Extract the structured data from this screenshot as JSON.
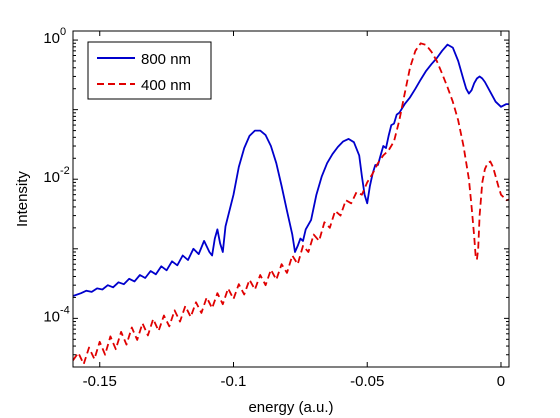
{
  "chart_data": {
    "type": "line",
    "xlabel": "energy (a.u.)",
    "ylabel": "Intensity",
    "xlim": [
      -0.16,
      0.003
    ],
    "ylim": [
      2e-05,
      1.35
    ],
    "yscale": "log",
    "grid": false,
    "legend": "top-left",
    "x_ticks": [
      {
        "value": -0.15,
        "label": "-0.15"
      },
      {
        "value": -0.1,
        "label": "-0.1"
      },
      {
        "value": -0.05,
        "label": "-0.05"
      },
      {
        "value": 0,
        "label": "0"
      }
    ],
    "y_ticks": [
      {
        "value": 0.0001,
        "base": "10",
        "exp": "-4"
      },
      {
        "value": 0.01,
        "base": "10",
        "exp": "-2"
      },
      {
        "value": 1,
        "base": "10",
        "exp": "0"
      }
    ],
    "series": [
      {
        "name": "800 nm",
        "color": "#0000cc",
        "dash": "solid",
        "x": [
          -0.16,
          -0.157,
          -0.155,
          -0.153,
          -0.151,
          -0.149,
          -0.147,
          -0.145,
          -0.143,
          -0.141,
          -0.139,
          -0.137,
          -0.135,
          -0.133,
          -0.131,
          -0.129,
          -0.127,
          -0.125,
          -0.123,
          -0.121,
          -0.119,
          -0.117,
          -0.115,
          -0.113,
          -0.111,
          -0.109,
          -0.108,
          -0.107,
          -0.106,
          -0.105,
          -0.104,
          -0.103,
          -0.1,
          -0.098,
          -0.096,
          -0.094,
          -0.092,
          -0.09,
          -0.088,
          -0.086,
          -0.084,
          -0.082,
          -0.08,
          -0.078,
          -0.077,
          -0.076,
          -0.075,
          -0.074,
          -0.073,
          -0.071,
          -0.069,
          -0.067,
          -0.065,
          -0.063,
          -0.061,
          -0.059,
          -0.057,
          -0.055,
          -0.053,
          -0.052,
          -0.051,
          -0.05,
          -0.049,
          -0.048,
          -0.047,
          -0.046,
          -0.045,
          -0.044,
          -0.043,
          -0.042,
          -0.041,
          -0.04,
          -0.039,
          -0.038,
          -0.036,
          -0.034,
          -0.032,
          -0.03,
          -0.028,
          -0.026,
          -0.024,
          -0.022,
          -0.02,
          -0.018,
          -0.016,
          -0.014,
          -0.013,
          -0.012,
          -0.011,
          -0.01,
          -0.009,
          -0.008,
          -0.007,
          -0.006,
          -0.004,
          -0.002,
          0.0,
          0.002,
          0.003
        ],
        "y": [
          0.00021,
          0.00023,
          0.00025,
          0.00024,
          0.00027,
          0.00026,
          0.0003,
          0.00028,
          0.00033,
          0.00031,
          0.00037,
          0.00034,
          0.00042,
          0.00038,
          0.00048,
          0.00043,
          0.00056,
          0.00049,
          0.00066,
          0.00058,
          0.0008,
          0.00069,
          0.001,
          0.00084,
          0.0013,
          0.0009,
          0.0008,
          0.0014,
          0.0019,
          0.0012,
          0.0009,
          0.0021,
          0.006,
          0.015,
          0.028,
          0.042,
          0.05,
          0.05,
          0.043,
          0.03,
          0.017,
          0.008,
          0.0035,
          0.0016,
          0.0009,
          0.0011,
          0.0014,
          0.0013,
          0.0019,
          0.0026,
          0.006,
          0.011,
          0.017,
          0.023,
          0.029,
          0.035,
          0.038,
          0.034,
          0.022,
          0.011,
          0.006,
          0.0045,
          0.008,
          0.012,
          0.016,
          0.016,
          0.022,
          0.03,
          0.028,
          0.042,
          0.06,
          0.063,
          0.085,
          0.09,
          0.12,
          0.15,
          0.2,
          0.27,
          0.36,
          0.45,
          0.55,
          0.7,
          0.86,
          0.78,
          0.5,
          0.27,
          0.2,
          0.17,
          0.19,
          0.24,
          0.28,
          0.3,
          0.28,
          0.25,
          0.18,
          0.13,
          0.11,
          0.12,
          0.12
        ]
      },
      {
        "name": "400 nm",
        "color": "#e00000",
        "dash": "dashed",
        "x": [
          -0.16,
          -0.158,
          -0.156,
          -0.154,
          -0.152,
          -0.15,
          -0.148,
          -0.146,
          -0.144,
          -0.142,
          -0.14,
          -0.138,
          -0.136,
          -0.134,
          -0.132,
          -0.13,
          -0.128,
          -0.126,
          -0.124,
          -0.122,
          -0.12,
          -0.118,
          -0.116,
          -0.114,
          -0.112,
          -0.11,
          -0.108,
          -0.106,
          -0.104,
          -0.102,
          -0.1,
          -0.098,
          -0.096,
          -0.094,
          -0.092,
          -0.09,
          -0.088,
          -0.086,
          -0.084,
          -0.082,
          -0.08,
          -0.078,
          -0.076,
          -0.074,
          -0.072,
          -0.07,
          -0.068,
          -0.066,
          -0.064,
          -0.062,
          -0.06,
          -0.058,
          -0.056,
          -0.054,
          -0.052,
          -0.05,
          -0.048,
          -0.046,
          -0.044,
          -0.042,
          -0.04,
          -0.038,
          -0.036,
          -0.034,
          -0.032,
          -0.03,
          -0.028,
          -0.026,
          -0.024,
          -0.022,
          -0.02,
          -0.018,
          -0.016,
          -0.014,
          -0.012,
          -0.011,
          -0.01,
          -0.0095,
          -0.009,
          -0.0085,
          -0.008,
          -0.007,
          -0.006,
          -0.005,
          -0.004,
          -0.003,
          -0.002,
          -0.001,
          0.0,
          0.001,
          0.002,
          0.003
        ],
        "y": [
          2.5e-05,
          3.2e-05,
          2.2e-05,
          3.8e-05,
          2.6e-05,
          4.6e-05,
          3e-05,
          5.5e-05,
          3.6e-05,
          6.4e-05,
          4.2e-05,
          7.4e-05,
          4.9e-05,
          8.5e-05,
          5.7e-05,
          9.8e-05,
          6.6e-05,
          0.00011,
          7.7e-05,
          0.00013,
          9e-05,
          0.00015,
          0.000105,
          0.00017,
          0.00012,
          0.0002,
          0.00014,
          0.00023,
          0.00016,
          0.00027,
          0.00019,
          0.00031,
          0.00022,
          0.00036,
          0.00026,
          0.00042,
          0.0003,
          0.0005,
          0.00036,
          0.0006,
          0.00045,
          0.0008,
          0.0006,
          0.0011,
          0.0009,
          0.0016,
          0.0013,
          0.0024,
          0.002,
          0.0035,
          0.003,
          0.005,
          0.0045,
          0.0065,
          0.006,
          0.009,
          0.012,
          0.017,
          0.022,
          0.026,
          0.035,
          0.07,
          0.17,
          0.4,
          0.7,
          0.9,
          0.85,
          0.68,
          0.5,
          0.33,
          0.21,
          0.13,
          0.07,
          0.03,
          0.01,
          0.004,
          0.0015,
          0.0008,
          0.0007,
          0.001,
          0.003,
          0.009,
          0.014,
          0.017,
          0.018,
          0.015,
          0.011,
          0.008,
          0.006,
          0.0055,
          0.005,
          0.0051
        ]
      }
    ]
  }
}
